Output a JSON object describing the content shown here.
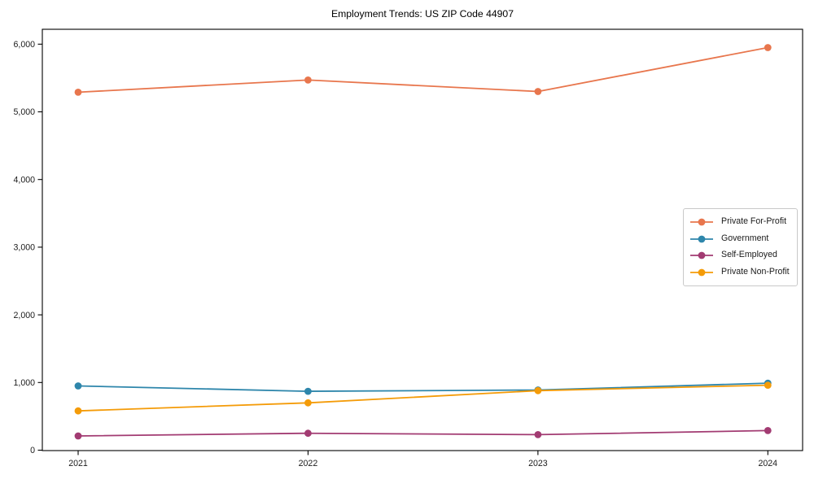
{
  "chart_data": {
    "type": "line",
    "title": "Employment Trends: US ZIP Code 44907",
    "categories": [
      "2021",
      "2022",
      "2023",
      "2024"
    ],
    "series": [
      {
        "name": "Private For-Profit",
        "color": "#E8764D",
        "values": [
          5290,
          5470,
          5300,
          5950
        ]
      },
      {
        "name": "Government",
        "color": "#2E86AB",
        "values": [
          950,
          870,
          890,
          990
        ]
      },
      {
        "name": "Self-Employed",
        "color": "#A23B72",
        "values": [
          210,
          250,
          230,
          290
        ]
      },
      {
        "name": "Private Non-Profit",
        "color": "#F49B08",
        "values": [
          580,
          700,
          880,
          960
        ]
      }
    ],
    "xlabel": "",
    "ylabel": "",
    "ylim": [
      0,
      6220
    ],
    "yticks": {
      "values": [
        0,
        1000,
        2000,
        3000,
        4000,
        5000,
        6000
      ],
      "labels": [
        "0",
        "1,000",
        "2,000",
        "3,000",
        "4,000",
        "5,000",
        "6,000"
      ]
    },
    "grid": false,
    "legend_position": "center-right",
    "marker": "circle",
    "axis_color": "#000000",
    "tick_label_color": "#1a1a1a"
  }
}
